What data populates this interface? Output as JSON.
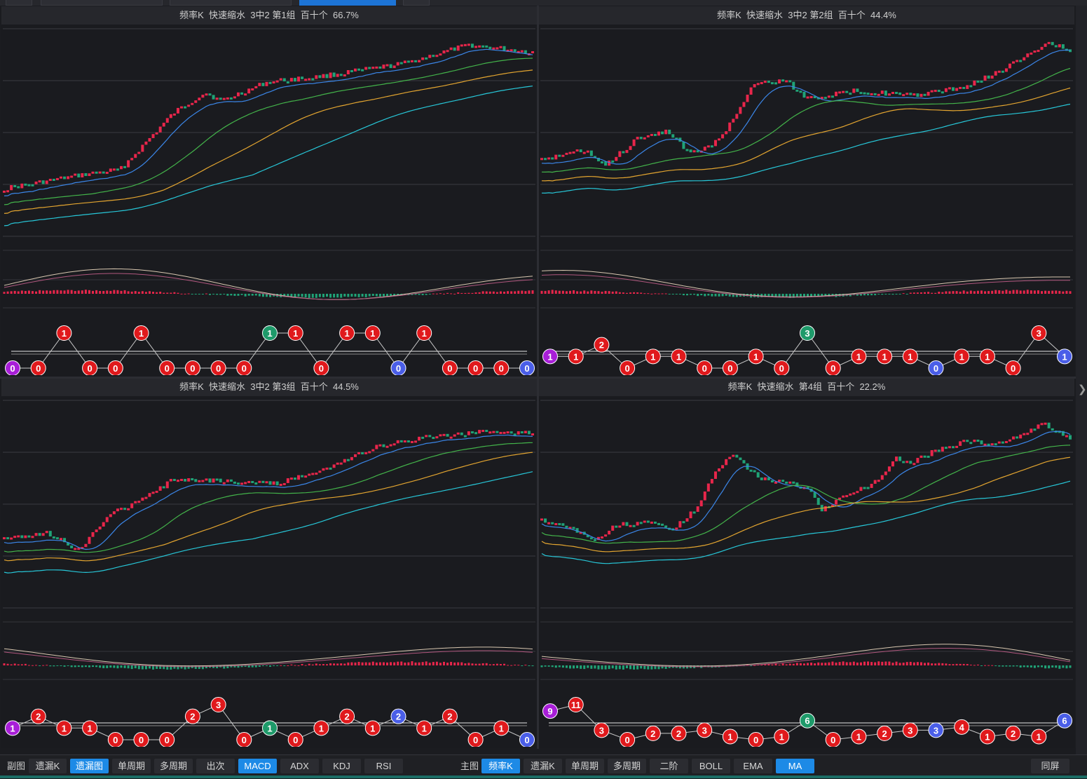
{
  "panels": [
    {
      "title": "频率K  快速缩水  3中2 第1组  百十个  66.7%",
      "seq": [
        [
          0,
          "p"
        ],
        [
          0,
          "r"
        ],
        [
          1,
          "r"
        ],
        [
          0,
          "r"
        ],
        [
          0,
          "r"
        ],
        [
          1,
          "r"
        ],
        [
          0,
          "r"
        ],
        [
          0,
          "r"
        ],
        [
          0,
          "r"
        ],
        [
          0,
          "r"
        ],
        [
          1,
          "g"
        ],
        [
          1,
          "r"
        ],
        [
          0,
          "r"
        ],
        [
          1,
          "r"
        ],
        [
          1,
          "r"
        ],
        [
          0,
          "b"
        ],
        [
          1,
          "r"
        ],
        [
          0,
          "r"
        ],
        [
          0,
          "r"
        ],
        [
          0,
          "r"
        ],
        [
          0,
          "b"
        ]
      ]
    },
    {
      "title": "频率K  快速缩水  3中2 第2组  百十个  44.4%",
      "seq": [
        [
          1,
          "p"
        ],
        [
          1,
          "r"
        ],
        [
          2,
          "r"
        ],
        [
          0,
          "r"
        ],
        [
          1,
          "r"
        ],
        [
          1,
          "r"
        ],
        [
          0,
          "r"
        ],
        [
          0,
          "r"
        ],
        [
          1,
          "r"
        ],
        [
          0,
          "r"
        ],
        [
          3,
          "g"
        ],
        [
          0,
          "r"
        ],
        [
          1,
          "r"
        ],
        [
          1,
          "r"
        ],
        [
          1,
          "r"
        ],
        [
          0,
          "b"
        ],
        [
          1,
          "r"
        ],
        [
          1,
          "r"
        ],
        [
          0,
          "r"
        ],
        [
          3,
          "r"
        ],
        [
          1,
          "b"
        ]
      ]
    },
    {
      "title": "频率K  快速缩水  3中2 第3组  百十个  44.5%",
      "seq": [
        [
          1,
          "p"
        ],
        [
          2,
          "r"
        ],
        [
          1,
          "r"
        ],
        [
          1,
          "r"
        ],
        [
          0,
          "r"
        ],
        [
          0,
          "r"
        ],
        [
          0,
          "r"
        ],
        [
          2,
          "r"
        ],
        [
          3,
          "r"
        ],
        [
          0,
          "r"
        ],
        [
          1,
          "g"
        ],
        [
          0,
          "r"
        ],
        [
          1,
          "r"
        ],
        [
          2,
          "r"
        ],
        [
          1,
          "r"
        ],
        [
          2,
          "b"
        ],
        [
          1,
          "r"
        ],
        [
          2,
          "r"
        ],
        [
          0,
          "r"
        ],
        [
          1,
          "r"
        ],
        [
          0,
          "b"
        ]
      ]
    },
    {
      "title": "频率K  快速缩水  第4组  百十个  22.2%",
      "seq": [
        [
          9,
          "p"
        ],
        [
          11,
          "r"
        ],
        [
          3,
          "r"
        ],
        [
          0,
          "r"
        ],
        [
          2,
          "r"
        ],
        [
          2,
          "r"
        ],
        [
          3,
          "r"
        ],
        [
          1,
          "r"
        ],
        [
          0,
          "r"
        ],
        [
          1,
          "r"
        ],
        [
          6,
          "g"
        ],
        [
          0,
          "r"
        ],
        [
          1,
          "r"
        ],
        [
          2,
          "r"
        ],
        [
          3,
          "r"
        ],
        [
          3,
          "b"
        ],
        [
          4,
          "r"
        ],
        [
          1,
          "r"
        ],
        [
          2,
          "r"
        ],
        [
          1,
          "r"
        ],
        [
          6,
          "b"
        ]
      ]
    }
  ],
  "toolbar_left": {
    "label": "副图",
    "buttons": [
      "遗漏K",
      "遗漏图",
      "单周期",
      "多周期",
      "出次",
      "MACD",
      "ADX",
      "KDJ",
      "RSI"
    ],
    "active": [
      "遗漏图",
      "MACD"
    ]
  },
  "toolbar_right": {
    "label": "主图",
    "buttons": [
      "频率K",
      "遗漏K",
      "单周期",
      "多周期",
      "二阶",
      "BOLL",
      "EMA",
      "MA"
    ],
    "active": [
      "频率K",
      "MA"
    ]
  },
  "same_screen": "同屏",
  "colors": {
    "up": "#e8264b",
    "down": "#20a377",
    "ma1": "#3b86e8",
    "ma2": "#43b34a",
    "ma3": "#e3a530",
    "ma4": "#27c7d8",
    "dif": "#d8c7b0",
    "dea": "#b0577e",
    "node_red": "#e0191c",
    "node_green": "#1e9a6a",
    "node_blue": "#4a5ee8",
    "node_purple": "#a81ed8",
    "accent": "#1d8ae6"
  }
}
